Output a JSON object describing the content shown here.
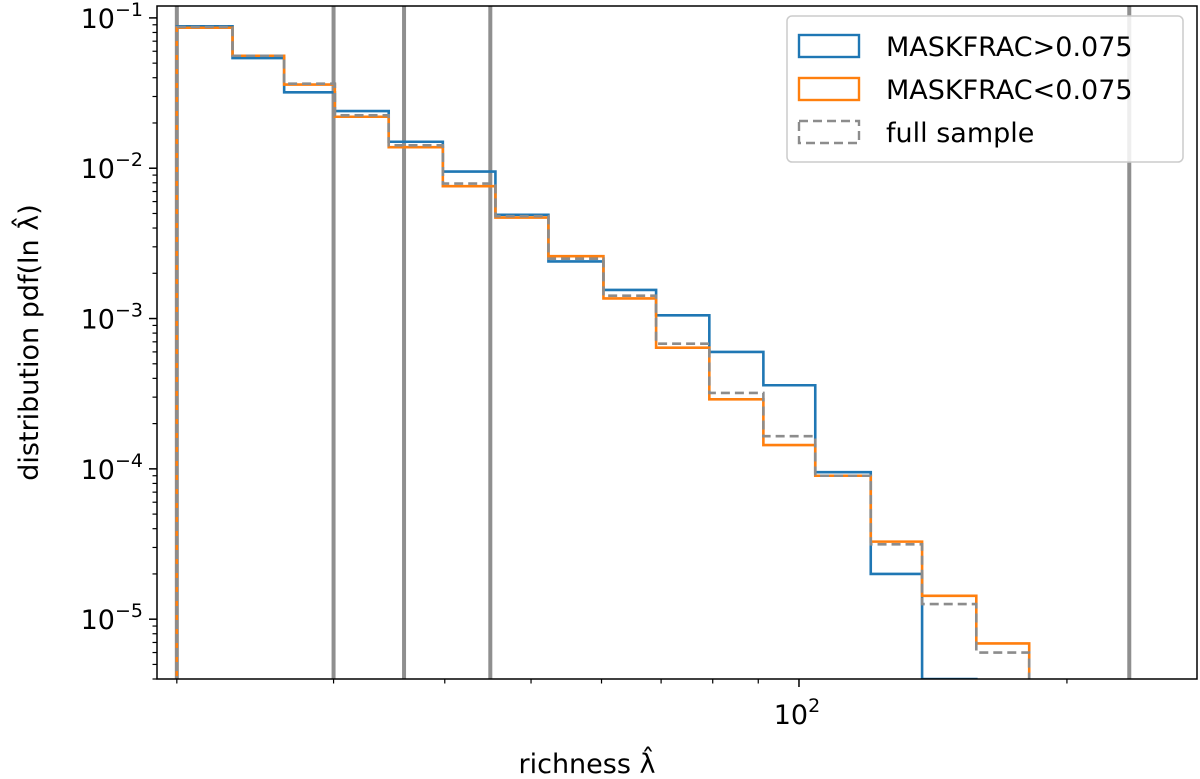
{
  "chart_data": {
    "type": "line",
    "title": "",
    "xlabel": "richness λ̂",
    "ylabel": "distribution pdf(ln λ̂)",
    "xscale": "log",
    "yscale": "log",
    "xlim": [
      19,
      280
    ],
    "ylim": [
      4e-06,
      0.12
    ],
    "x_ticks": [
      {
        "value": 100,
        "label": "10",
        "exp": "2"
      }
    ],
    "y_ticks": [
      {
        "value": 0.1,
        "label": "10",
        "exp": "−1"
      },
      {
        "value": 0.01,
        "label": "10",
        "exp": "−2"
      },
      {
        "value": 0.001,
        "label": "10",
        "exp": "−3"
      },
      {
        "value": 0.0001,
        "label": "10",
        "exp": "−4"
      },
      {
        "value": 1e-05,
        "label": "10",
        "exp": "−5"
      }
    ],
    "vertical_lines": [
      20,
      30,
      36,
      45,
      235
    ],
    "bin_edges": [
      20,
      23.1,
      26.4,
      30.1,
      34.6,
      39.8,
      45.6,
      52.3,
      60.3,
      69.1,
      79.3,
      91.2,
      104.3,
      120.4,
      137.5,
      158.2,
      181.4,
      208.7,
      239.7
    ],
    "series": [
      {
        "name": "MASKFRAC>0.075",
        "color": "#1f77b4",
        "style": "solid",
        "values": [
          0.088,
          0.054,
          0.032,
          0.024,
          0.015,
          0.0095,
          0.0049,
          0.0024,
          0.00155,
          0.00105,
          0.0006,
          0.00036,
          9.5e-05,
          2e-05,
          4e-06,
          null,
          null,
          null
        ]
      },
      {
        "name": "MASKFRAC<0.075",
        "color": "#ff7f0e",
        "style": "solid",
        "values": [
          0.086,
          0.056,
          0.036,
          0.022,
          0.0138,
          0.0076,
          0.0047,
          0.0026,
          0.00136,
          0.00064,
          0.00029,
          0.000144,
          9e-05,
          3.28e-05,
          1.43e-05,
          6.9e-06,
          null,
          null
        ]
      },
      {
        "name": "full sample",
        "color": "#8c8c8c",
        "style": "dashed",
        "values": [
          0.087,
          0.056,
          0.0365,
          0.0225,
          0.0142,
          0.0079,
          0.0048,
          0.0025,
          0.00142,
          0.00068,
          0.00032,
          0.000165,
          9e-05,
          3.15e-05,
          1.26e-05,
          6e-06,
          null,
          null
        ]
      }
    ],
    "grid": false,
    "legend_position": "top-right"
  }
}
